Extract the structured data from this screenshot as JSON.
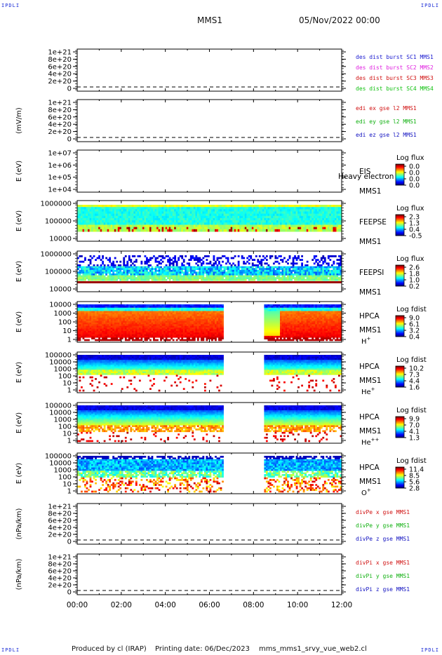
{
  "header": {
    "corner_left": "IPDLI",
    "corner_right": "IPDLI",
    "corner_bl": "IPDLI",
    "corner_br": "IPDLI",
    "spacecraft": "MMS1",
    "date": "05/Nov/2022 00:00"
  },
  "footer": {
    "produced": "Produced by cl (IRAP)",
    "printing": "Printing date: 06/Dec/2023",
    "script": "mms_mms1_srvy_vue_web2.cl"
  },
  "colors": {
    "c1": "#1a1ad0",
    "c2": "#e020e0",
    "c3": "#d01010",
    "c4": "#10c010",
    "red": "#d01010",
    "green": "#10b010",
    "blue": "#1010c0"
  },
  "chart_data": [
    {
      "type": "line",
      "panel": "des-dist",
      "ytick_labels": [
        "1e+21",
        "8e+20",
        "6e+20",
        "4e+20",
        "2e+20",
        "0"
      ],
      "ylim": [
        0,
        1e+21
      ],
      "series": [
        {
          "name": "des dist burst SC1 MMS1",
          "values": []
        },
        {
          "name": "des dist burst SC2 MMS2",
          "values": []
        },
        {
          "name": "des dist burst SC3 MMS3",
          "values": []
        },
        {
          "name": "des dist burst SC4 MMS4",
          "values": []
        }
      ]
    },
    {
      "type": "line",
      "panel": "edi",
      "ylabel": "(mV/m)",
      "ytick_labels": [
        "1e+21",
        "8e+20",
        "6e+20",
        "4e+20",
        "2e+20",
        "0"
      ],
      "ylim": [
        0,
        1e+21
      ],
      "series": [
        {
          "name": "edi ex gse l2 MMS1",
          "values": []
        },
        {
          "name": "edi ey gse l2 MMS1",
          "values": []
        },
        {
          "name": "edi ez gse l2 MMS1",
          "values": []
        }
      ]
    },
    {
      "type": "heatmap",
      "panel": "eis",
      "ylabel": "E (eV)",
      "ytick_labels": [
        "1e+07",
        "1e+06",
        "1e+05",
        "1e+04"
      ],
      "ylim": [
        10000,
        10000000
      ],
      "instrument": [
        "EIS",
        "MMS1"
      ],
      "overlap_text": "Heavy electron to",
      "colorbar_title": "Log flux",
      "colorbar_ticks": [
        "0.0",
        "0.0",
        "0.0",
        "0.0"
      ],
      "coverage": "none"
    },
    {
      "type": "heatmap",
      "panel": "feepse",
      "ylabel": "E (eV)",
      "ytick_labels": [
        "1000000",
        "100000",
        "10000"
      ],
      "ylim": [
        10000,
        1000000
      ],
      "instrument": [
        "FEEPSE",
        "MMS1"
      ],
      "colorbar_title": "Log flux",
      "colorbar_ticks": [
        "2.3",
        "1.3",
        "0.4",
        "-0.5"
      ]
    },
    {
      "type": "heatmap",
      "panel": "feepsi",
      "ylabel": "E (eV)",
      "ytick_labels": [
        "1000000",
        "100000",
        "10000"
      ],
      "ylim": [
        10000,
        1000000
      ],
      "instrument": [
        "FEEPSI",
        "MMS1"
      ],
      "colorbar_title": "Log flux",
      "colorbar_ticks": [
        "2.6",
        "1.8",
        "1.0",
        "0.2"
      ]
    },
    {
      "type": "heatmap",
      "panel": "hpca-h",
      "ylabel": "E (eV)",
      "ytick_labels": [
        "10000",
        "1000",
        "100",
        "10",
        "1"
      ],
      "ylim": [
        1,
        40000
      ],
      "instrument": [
        "HPCA",
        "MMS1"
      ],
      "species": "H",
      "species_sup": "+",
      "colorbar_title": "Log fdist",
      "colorbar_ticks": [
        "9.0",
        "6.1",
        "3.2",
        "0.4"
      ],
      "data_gap_hours": [
        6.7,
        8.4
      ]
    },
    {
      "type": "heatmap",
      "panel": "hpca-he",
      "ylabel": "E (eV)",
      "ytick_labels": [
        "100000",
        "10000",
        "1000",
        "100",
        "10",
        "1"
      ],
      "ylim": [
        1,
        100000
      ],
      "instrument": [
        "HPCA",
        "MMS1"
      ],
      "species": "He",
      "species_sup": "+",
      "colorbar_title": "Log fdist",
      "colorbar_ticks": [
        "10.2",
        "7.3",
        "4.4",
        "1.6"
      ],
      "data_gap_hours": [
        6.7,
        8.4
      ]
    },
    {
      "type": "heatmap",
      "panel": "hpca-hepp",
      "ylabel": "E (eV)",
      "ytick_labels": [
        "100000",
        "10000",
        "1000",
        "100",
        "10",
        "1"
      ],
      "ylim": [
        1,
        100000
      ],
      "instrument": [
        "HPCA",
        "MMS1"
      ],
      "species": "He",
      "species_sup": "++",
      "colorbar_title": "Log fdist",
      "colorbar_ticks": [
        "9.9",
        "7.0",
        "4.1",
        "1.3"
      ],
      "data_gap_hours": [
        6.7,
        8.4
      ]
    },
    {
      "type": "heatmap",
      "panel": "hpca-o",
      "ylabel": "E (eV)",
      "ytick_labels": [
        "100000",
        "10000",
        "1000",
        "100",
        "10",
        "1"
      ],
      "ylim": [
        1,
        100000
      ],
      "instrument": [
        "HPCA",
        "MMS1"
      ],
      "species": "O",
      "species_sup": "+",
      "colorbar_title": "Log fdist",
      "colorbar_ticks": [
        "11.4",
        "8.5",
        "5.6",
        "2.8"
      ],
      "data_gap_hours": [
        6.7,
        8.4
      ]
    },
    {
      "type": "line",
      "panel": "divpe",
      "ylabel": "(nPa/km)",
      "ytick_labels": [
        "1e+21",
        "8e+20",
        "6e+20",
        "4e+20",
        "2e+20",
        "0"
      ],
      "ylim": [
        0,
        1e+21
      ],
      "series": [
        {
          "name": "divPe x gse MMS1",
          "values": []
        },
        {
          "name": "divPe y gse MMS1",
          "values": []
        },
        {
          "name": "divPe z gse MMS1",
          "values": []
        }
      ]
    },
    {
      "type": "line",
      "panel": "divpi",
      "ylabel": "(nPa/km)",
      "ytick_labels": [
        "1e+21",
        "8e+20",
        "6e+20",
        "4e+20",
        "2e+20",
        "0"
      ],
      "ylim": [
        0,
        1e+21
      ],
      "series": [
        {
          "name": "divPi x gse MMS1",
          "values": []
        },
        {
          "name": "divPi y gse MMS1",
          "values": []
        },
        {
          "name": "divPi z gse MMS1",
          "values": []
        }
      ]
    }
  ],
  "xaxis": {
    "tick_labels": [
      "00:00",
      "02:00",
      "04:00",
      "06:00",
      "08:00",
      "10:00",
      "12:00"
    ],
    "range_hours": [
      0,
      12
    ]
  }
}
